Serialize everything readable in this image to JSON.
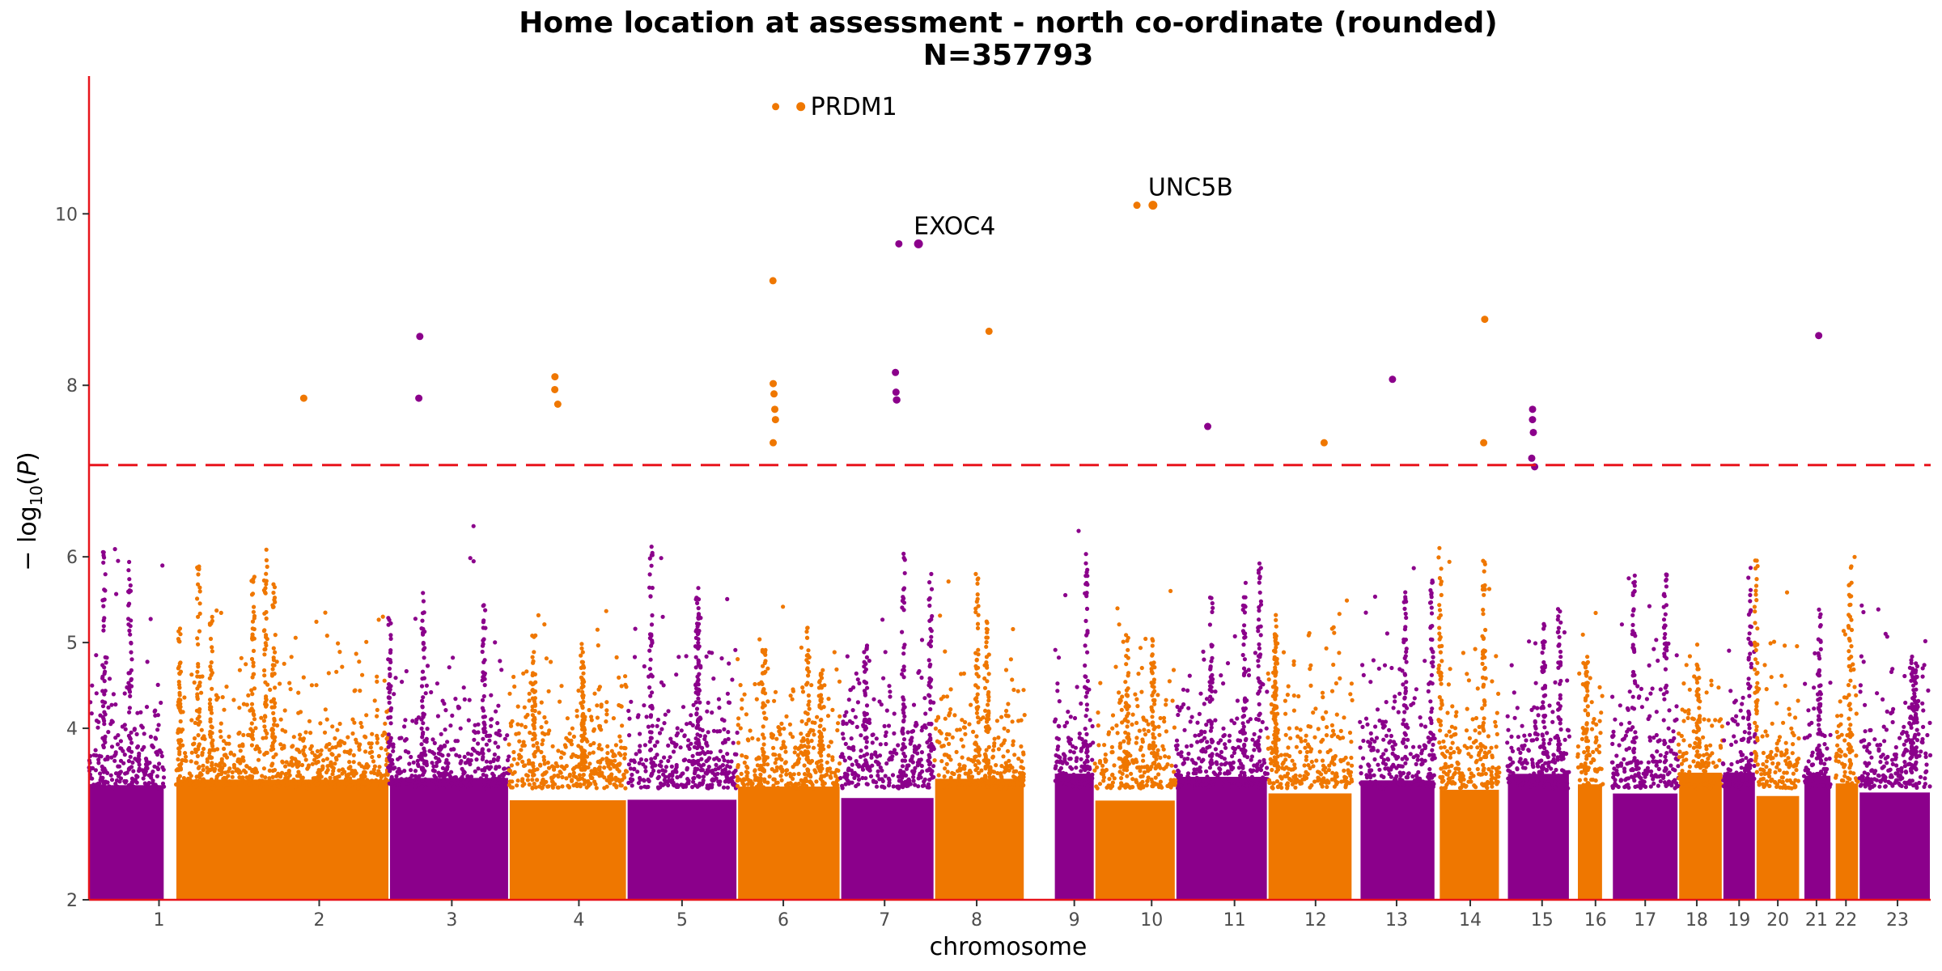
{
  "chart_data": {
    "type": "scatter",
    "subtype": "manhattan",
    "title": "Home location at assessment - north co-ordinate (rounded)",
    "subtitle": "N=357793",
    "xlabel": "chromosome",
    "ylabel": "-log10(P)",
    "ylim": [
      2,
      11.55
    ],
    "y_ticks": [
      2,
      4,
      5,
      6,
      8,
      10
    ],
    "grid": false,
    "significance_threshold": 7.07,
    "colors": {
      "odd_chromosome": "#8b008b",
      "even_chromosome": "#ef7700",
      "threshold_line": "#e8141c",
      "axis_line": "#e8141c"
    },
    "chromosomes": [
      {
        "label": "1",
        "start": 0,
        "end": 0.85,
        "gap_after": 0.1,
        "color": "odd"
      },
      {
        "label": "2",
        "start": 0.95,
        "end": 1.92,
        "color": "even"
      },
      {
        "label": "3",
        "start": 1.92,
        "end": 2.57,
        "color": "odd"
      },
      {
        "label": "4",
        "start": 2.57,
        "end": 3.08,
        "color": "even"
      },
      {
        "label": "5",
        "start": 3.08,
        "end": 3.95,
        "color": "odd"
      },
      {
        "label": "6",
        "start": 3.95,
        "end": 4.62,
        "color": "even"
      },
      {
        "label": "7",
        "start": 4.62,
        "end": 5.35,
        "color": "odd"
      },
      {
        "label": "8",
        "start": 5.35,
        "end": 5.78,
        "color": "even"
      },
      {
        "label": "9",
        "start": 5.78,
        "end": 6.39,
        "color": "odd"
      },
      {
        "label": "10",
        "start": 6.39,
        "end": 6.95,
        "color": "even"
      },
      {
        "label": "11",
        "start": 6.95,
        "end": 7.46,
        "color": "odd"
      },
      {
        "label": "12",
        "start": 7.46,
        "end": 8.07,
        "color": "even"
      },
      {
        "label": "13",
        "start": 8.07,
        "end": 8.49,
        "color": "odd"
      },
      {
        "label": "14",
        "start": 8.49,
        "end": 8.92,
        "color": "even"
      },
      {
        "label": "15",
        "start": 8.92,
        "end": 9.32,
        "color": "odd"
      },
      {
        "label": "16",
        "start": 9.32,
        "end": 9.67,
        "color": "even"
      },
      {
        "label": "17",
        "start": 9.67,
        "end": 10.0,
        "color": "odd"
      },
      {
        "label": "18",
        "start": 10.0,
        "end": 10.32,
        "color": "even"
      },
      {
        "label": "19",
        "start": 10.32,
        "end": 10.58,
        "color": "odd"
      },
      {
        "label": "20",
        "start": 10.58,
        "end": 10.84,
        "color": "even"
      },
      {
        "label": "21",
        "start": 10.84,
        "end": 11.06,
        "color": "odd"
      },
      {
        "label": "22",
        "start": 11.06,
        "end": 11.33,
        "color": "even"
      },
      {
        "label": "23",
        "start": 11.33,
        "end": 12.05,
        "color": "odd"
      }
    ],
    "chromosome_layout": [
      {
        "label": "1",
        "x0": 0.0,
        "x1": 0.041,
        "tick": 0.038
      },
      {
        "label": "2",
        "x0": 0.047,
        "x1": 0.163,
        "tick": 0.125
      },
      {
        "label": "3",
        "x0": 0.163,
        "x1": 0.228,
        "tick": 0.197
      },
      {
        "label": "4",
        "x0": 0.228,
        "x1": 0.292,
        "tick": 0.266
      },
      {
        "label": "5",
        "x0": 0.292,
        "x1": 0.352,
        "tick": 0.322
      },
      {
        "label": "6",
        "x0": 0.352,
        "x1": 0.408,
        "tick": 0.377
      },
      {
        "label": "7",
        "x0": 0.408,
        "x1": 0.459,
        "tick": 0.432
      },
      {
        "label": "8",
        "x0": 0.459,
        "x1": 0.508,
        "tick": 0.482
      },
      {
        "label": "9",
        "x0": 0.524,
        "x1": 0.546,
        "tick": 0.535
      },
      {
        "label": "10",
        "x0": 0.546,
        "x1": 0.59,
        "tick": 0.577
      },
      {
        "label": "11",
        "x0": 0.59,
        "x1": 0.64,
        "tick": 0.622
      },
      {
        "label": "12",
        "x0": 0.64,
        "x1": 0.686,
        "tick": 0.666
      },
      {
        "label": "13",
        "x0": 0.69,
        "x1": 0.731,
        "tick": 0.71
      },
      {
        "label": "14",
        "x0": 0.733,
        "x1": 0.766,
        "tick": 0.75
      },
      {
        "label": "15",
        "x0": 0.77,
        "x1": 0.804,
        "tick": 0.789
      },
      {
        "label": "16",
        "x0": 0.808,
        "x1": 0.822,
        "tick": 0.818
      },
      {
        "label": "17",
        "x0": 0.827,
        "x1": 0.863,
        "tick": 0.845
      },
      {
        "label": "18",
        "x0": 0.863,
        "x1": 0.887,
        "tick": 0.873
      },
      {
        "label": "19",
        "x0": 0.887,
        "x1": 0.905,
        "tick": 0.896
      },
      {
        "label": "20",
        "x0": 0.905,
        "x1": 0.929,
        "tick": 0.917
      },
      {
        "label": "21",
        "x0": 0.931,
        "x1": 0.946,
        "tick": 0.938
      },
      {
        "label": "22",
        "x0": 0.948,
        "x1": 0.961,
        "tick": 0.954
      },
      {
        "label": "23",
        "x0": 0.961,
        "x1": 1.0,
        "tick": 0.982
      }
    ],
    "top_hits": [
      {
        "chromosome": "6",
        "gene": "PRDM1",
        "neg_log10_p": 11.25
      },
      {
        "chromosome": "10",
        "gene": "UNC5B",
        "neg_log10_p": 10.1
      },
      {
        "chromosome": "7",
        "gene": "EXOC4",
        "neg_log10_p": 9.65
      }
    ],
    "significant_points": [
      {
        "chromosome": "2",
        "neg_log10_p": 7.85
      },
      {
        "chromosome": "3",
        "neg_log10_p": 8.57
      },
      {
        "chromosome": "3",
        "neg_log10_p": 7.85
      },
      {
        "chromosome": "4",
        "neg_log10_p": 8.1
      },
      {
        "chromosome": "4",
        "neg_log10_p": 7.95
      },
      {
        "chromosome": "4",
        "neg_log10_p": 7.78
      },
      {
        "chromosome": "6",
        "neg_log10_p": 9.22
      },
      {
        "chromosome": "6",
        "neg_log10_p": 8.02
      },
      {
        "chromosome": "6",
        "neg_log10_p": 7.9
      },
      {
        "chromosome": "6",
        "neg_log10_p": 7.72
      },
      {
        "chromosome": "6",
        "neg_log10_p": 7.6
      },
      {
        "chromosome": "6",
        "neg_log10_p": 7.33
      },
      {
        "chromosome": "6",
        "neg_log10_p": 11.25
      },
      {
        "chromosome": "7",
        "neg_log10_p": 7.83
      },
      {
        "chromosome": "7",
        "neg_log10_p": 9.65
      },
      {
        "chromosome": "7",
        "neg_log10_p": 8.15
      },
      {
        "chromosome": "7",
        "neg_log10_p": 7.92
      },
      {
        "chromosome": "7",
        "neg_log10_p": 7.83
      },
      {
        "chromosome": "8",
        "neg_log10_p": 8.63
      },
      {
        "chromosome": "10",
        "neg_log10_p": 10.1
      },
      {
        "chromosome": "11",
        "neg_log10_p": 7.52
      },
      {
        "chromosome": "12",
        "neg_log10_p": 7.33
      },
      {
        "chromosome": "13",
        "neg_log10_p": 8.07
      },
      {
        "chromosome": "14",
        "neg_log10_p": 7.33
      },
      {
        "chromosome": "14",
        "neg_log10_p": 8.77
      },
      {
        "chromosome": "15",
        "neg_log10_p": 7.72
      },
      {
        "chromosome": "15",
        "neg_log10_p": 7.6
      },
      {
        "chromosome": "15",
        "neg_log10_p": 7.45
      },
      {
        "chromosome": "15",
        "neg_log10_p": 7.15
      },
      {
        "chromosome": "15",
        "neg_log10_p": 7.05
      },
      {
        "chromosome": "21",
        "neg_log10_p": 8.58
      }
    ],
    "background_distribution": "dense band of points from -log10(P)=2 to roughly 4.5 in every chromosome, with scattered points up to about 6.8"
  }
}
